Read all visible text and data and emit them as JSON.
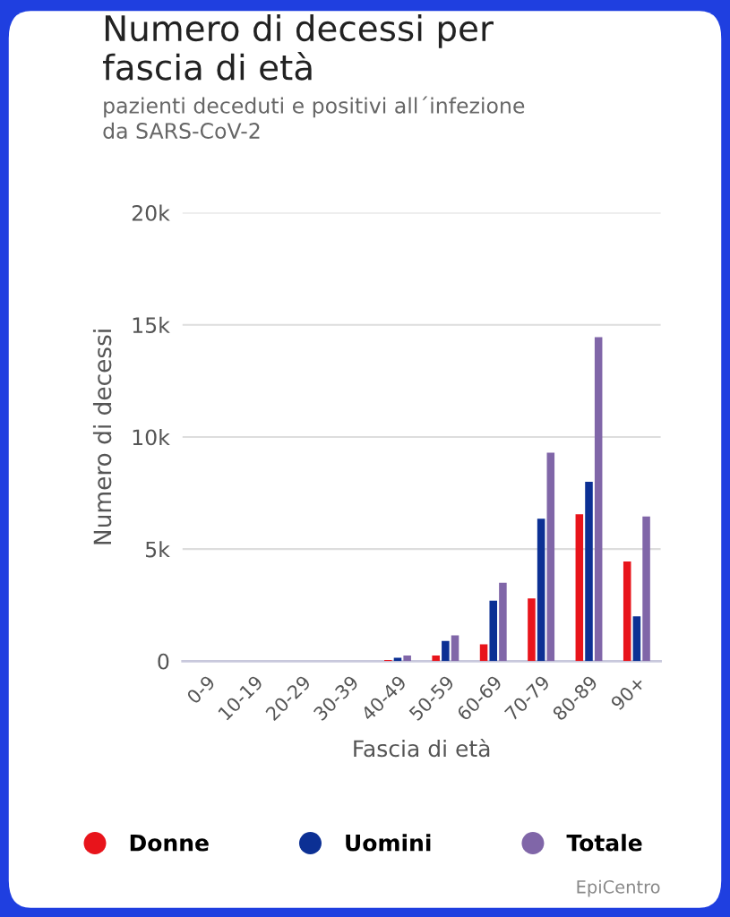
{
  "chart_data": {
    "type": "bar",
    "title": "Numero di decessi per\nfascia di età",
    "subtitle": "pazienti deceduti e positivi all´infezione\nda SARS-CoV-2",
    "xlabel": "Fascia di età",
    "ylabel": "Numero di decessi",
    "categories": [
      "0-9",
      "10-19",
      "20-29",
      "30-39",
      "40-49",
      "50-59",
      "60-69",
      "70-79",
      "80-89",
      "90+"
    ],
    "series": [
      {
        "name": "Donne",
        "color": "#e8141b",
        "values": [
          0,
          0,
          0,
          0,
          50,
          250,
          750,
          2800,
          6550,
          4450
        ]
      },
      {
        "name": "Uomini",
        "color": "#0c3094",
        "values": [
          0,
          0,
          0,
          0,
          150,
          900,
          2700,
          6350,
          8000,
          2000
        ]
      },
      {
        "name": "Totale",
        "color": "#8066a8",
        "values": [
          0,
          0,
          0,
          0,
          250,
          1150,
          3500,
          9300,
          14450,
          6450
        ]
      }
    ],
    "ylim": [
      0,
      20000
    ],
    "yticks": [
      {
        "value": 0,
        "label": "0"
      },
      {
        "value": 5000,
        "label": "5k"
      },
      {
        "value": 10000,
        "label": "10k"
      },
      {
        "value": 15000,
        "label": "15k"
      },
      {
        "value": 20000,
        "label": "20k"
      }
    ],
    "grid": "y",
    "legend": "bottom",
    "annotations": [
      "EpiCentro"
    ]
  }
}
